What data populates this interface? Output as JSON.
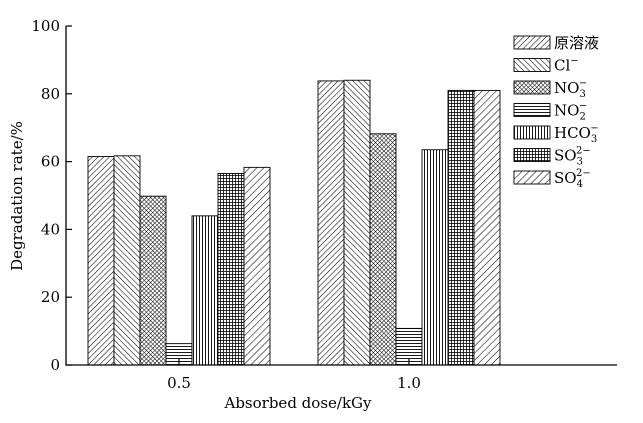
{
  "chart_data": {
    "type": "bar",
    "title": "",
    "xlabel": "Absorbed dose/kGy",
    "ylabel": "Degradation rate/%",
    "ylim": [
      0,
      100
    ],
    "yticks": [
      "0",
      "20",
      "40",
      "60",
      "80",
      "100"
    ],
    "categories": [
      "0.5",
      "1.0"
    ],
    "grid": false,
    "legend_position": "top-right",
    "series": [
      {
        "name": "原溶液",
        "label_base": "原溶液",
        "label_sub": "",
        "label_sup": "",
        "pattern": "diag-right-dense",
        "values": [
          61.5,
          83.8
        ]
      },
      {
        "name": "Cl⁻",
        "label_base": "Cl",
        "label_sub": "",
        "label_sup": "−",
        "pattern": "diag-left",
        "values": [
          61.7,
          84.0
        ]
      },
      {
        "name": "NO₃⁻",
        "label_base": "NO",
        "label_sub": "3",
        "label_sup": "−",
        "pattern": "crosshatch-dense",
        "values": [
          49.8,
          68.2
        ]
      },
      {
        "name": "NO₂⁻",
        "label_base": "NO",
        "label_sub": "2",
        "label_sup": "−",
        "pattern": "horizontal",
        "values": [
          6.3,
          10.8
        ]
      },
      {
        "name": "HCO₃⁻",
        "label_base": "HCO",
        "label_sub": "3",
        "label_sup": "−",
        "pattern": "vertical",
        "values": [
          44.0,
          63.5
        ]
      },
      {
        "name": "SO₃²⁻",
        "label_base": "SO",
        "label_sub": "3",
        "label_sup": "2−",
        "pattern": "grid",
        "values": [
          56.5,
          81.0
        ]
      },
      {
        "name": "SO₄²⁻",
        "label_base": "SO",
        "label_sub": "4",
        "label_sup": "2−",
        "pattern": "diag-right",
        "values": [
          58.3,
          81.0
        ]
      }
    ]
  }
}
